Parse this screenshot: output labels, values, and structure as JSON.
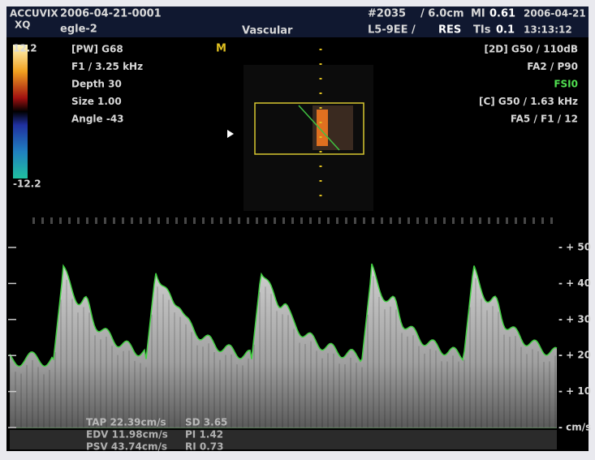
{
  "header": {
    "brand": "ACCUVIX",
    "model": "XQ",
    "patient_id": "2006-04-21-0001",
    "patient_name": "egle-2",
    "preset": "Vascular",
    "frame": "#2035",
    "depth": "/ 6.0cm",
    "mi_label": "MI",
    "mi_value": "0.61",
    "date": "2006-04-21",
    "probe": "L5-9EE /",
    "res": "RES",
    "tis_label": "TIs",
    "tis_value": "0.1",
    "time": "13:13:12"
  },
  "color_scale": {
    "max": "12.2",
    "min": "-12.2"
  },
  "focus_marker": "M",
  "pw_settings": [
    "[PW]  G68",
    "F1 / 3.25 kHz",
    "Depth  30",
    "Size   1.00",
    "Angle  -43"
  ],
  "image_settings": [
    "[2D] G50 / 110dB",
    "FA2 / P90",
    "FSI0",
    "[C] G50 / 1.63 kHz",
    "FA5 / F1 / 12"
  ],
  "velocity_scale": [
    "- + 50",
    "- + 40",
    "- + 30",
    "- + 20",
    "- + 10",
    "- cm/s"
  ],
  "measurements": [
    [
      "TAP 22.39cm/s",
      "SD 3.65"
    ],
    [
      "EDV 11.98cm/s",
      "PI 1.42"
    ],
    [
      "PSV 43.74cm/s",
      "RI 0.73"
    ]
  ]
}
